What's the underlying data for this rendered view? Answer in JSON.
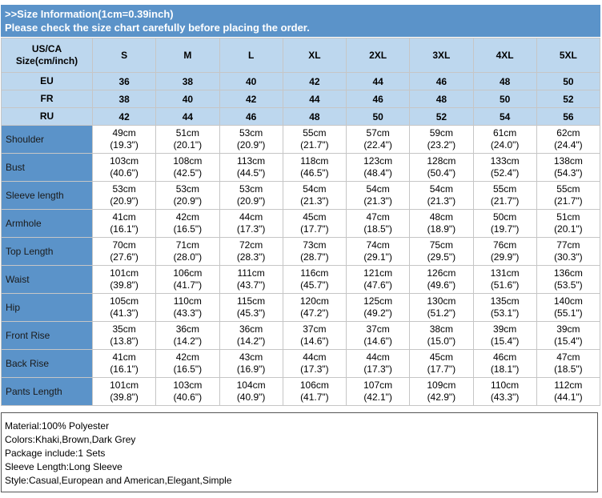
{
  "banner": {
    "line1": ">>Size Information(1cm=0.39inch)",
    "line2": "Please check the size chart carefully before placing the order."
  },
  "table": {
    "corner_label_1": "US/CA",
    "corner_label_2": "Size(cm/inch)",
    "sizes": [
      "S",
      "M",
      "L",
      "XL",
      "2XL",
      "3XL",
      "4XL",
      "5XL"
    ],
    "regional": [
      {
        "label": "EU",
        "values": [
          "36",
          "38",
          "40",
          "42",
          "44",
          "46",
          "48",
          "50"
        ]
      },
      {
        "label": "FR",
        "values": [
          "38",
          "40",
          "42",
          "44",
          "46",
          "48",
          "50",
          "52"
        ]
      },
      {
        "label": "RU",
        "values": [
          "42",
          "44",
          "46",
          "48",
          "50",
          "52",
          "54",
          "56"
        ]
      }
    ],
    "measurements": [
      {
        "label": "Shoulder",
        "cm": [
          "49cm",
          "51cm",
          "53cm",
          "55cm",
          "57cm",
          "59cm",
          "61cm",
          "62cm"
        ],
        "inch": [
          "(19.3\")",
          "(20.1\")",
          "(20.9\")",
          "(21.7\")",
          "(22.4\")",
          "(23.2\")",
          "(24.0\")",
          "(24.4\")"
        ]
      },
      {
        "label": "Bust",
        "cm": [
          "103cm",
          "108cm",
          "113cm",
          "118cm",
          "123cm",
          "128cm",
          "133cm",
          "138cm"
        ],
        "inch": [
          "(40.6\")",
          "(42.5\")",
          "(44.5\")",
          "(46.5\")",
          "(48.4\")",
          "(50.4\")",
          "(52.4\")",
          "(54.3\")"
        ]
      },
      {
        "label": "Sleeve length",
        "cm": [
          "53cm",
          "53cm",
          "53cm",
          "54cm",
          "54cm",
          "54cm",
          "55cm",
          "55cm"
        ],
        "inch": [
          "(20.9\")",
          "(20.9\")",
          "(20.9\")",
          "(21.3\")",
          "(21.3\")",
          "(21.3\")",
          "(21.7\")",
          "(21.7\")"
        ]
      },
      {
        "label": "Armhole",
        "cm": [
          "41cm",
          "42cm",
          "44cm",
          "45cm",
          "47cm",
          "48cm",
          "50cm",
          "51cm"
        ],
        "inch": [
          "(16.1\")",
          "(16.5\")",
          "(17.3\")",
          "(17.7\")",
          "(18.5\")",
          "(18.9\")",
          "(19.7\")",
          "(20.1\")"
        ]
      },
      {
        "label": "Top Length",
        "cm": [
          "70cm",
          "71cm",
          "72cm",
          "73cm",
          "74cm",
          "75cm",
          "76cm",
          "77cm"
        ],
        "inch": [
          "(27.6\")",
          "(28.0\")",
          "(28.3\")",
          "(28.7\")",
          "(29.1\")",
          "(29.5\")",
          "(29.9\")",
          "(30.3\")"
        ]
      },
      {
        "label": "Waist",
        "cm": [
          "101cm",
          "106cm",
          "111cm",
          "116cm",
          "121cm",
          "126cm",
          "131cm",
          "136cm"
        ],
        "inch": [
          "(39.8\")",
          "(41.7\")",
          "(43.7\")",
          "(45.7\")",
          "(47.6\")",
          "(49.6\")",
          "(51.6\")",
          "(53.5\")"
        ]
      },
      {
        "label": "Hip",
        "cm": [
          "105cm",
          "110cm",
          "115cm",
          "120cm",
          "125cm",
          "130cm",
          "135cm",
          "140cm"
        ],
        "inch": [
          "(41.3\")",
          "(43.3\")",
          "(45.3\")",
          "(47.2\")",
          "(49.2\")",
          "(51.2\")",
          "(53.1\")",
          "(55.1\")"
        ]
      },
      {
        "label": "Front Rise",
        "cm": [
          "35cm",
          "36cm",
          "36cm",
          "37cm",
          "37cm",
          "38cm",
          "39cm",
          "39cm"
        ],
        "inch": [
          "(13.8\")",
          "(14.2\")",
          "(14.2\")",
          "(14.6\")",
          "(14.6\")",
          "(15.0\")",
          "(15.4\")",
          "(15.4\")"
        ]
      },
      {
        "label": "Back Rise",
        "cm": [
          "41cm",
          "42cm",
          "43cm",
          "44cm",
          "44cm",
          "45cm",
          "46cm",
          "47cm"
        ],
        "inch": [
          "(16.1\")",
          "(16.5\")",
          "(16.9\")",
          "(17.3\")",
          "(17.3\")",
          "(17.7\")",
          "(18.1\")",
          "(18.5\")"
        ]
      },
      {
        "label": "Pants Length",
        "cm": [
          "101cm",
          "103cm",
          "104cm",
          "106cm",
          "107cm",
          "109cm",
          "110cm",
          "112cm"
        ],
        "inch": [
          "(39.8\")",
          "(40.6\")",
          "(40.9\")",
          "(41.7\")",
          "(42.1\")",
          "(42.9\")",
          "(43.3\")",
          "(44.1\")"
        ]
      }
    ]
  },
  "info": [
    "Material:100% Polyester",
    "Colors:Khaki,Brown,Dark Grey",
    "Package include:1 Sets",
    "Sleeve Length:Long Sleeve",
    "Style:Casual,European and American,Elegant,Simple"
  ],
  "colors": {
    "banner": "#5b93c9",
    "header_fill": "#bdd7ee",
    "row_label_fill": "#5b93c9",
    "grid": "#c6c6c6"
  }
}
